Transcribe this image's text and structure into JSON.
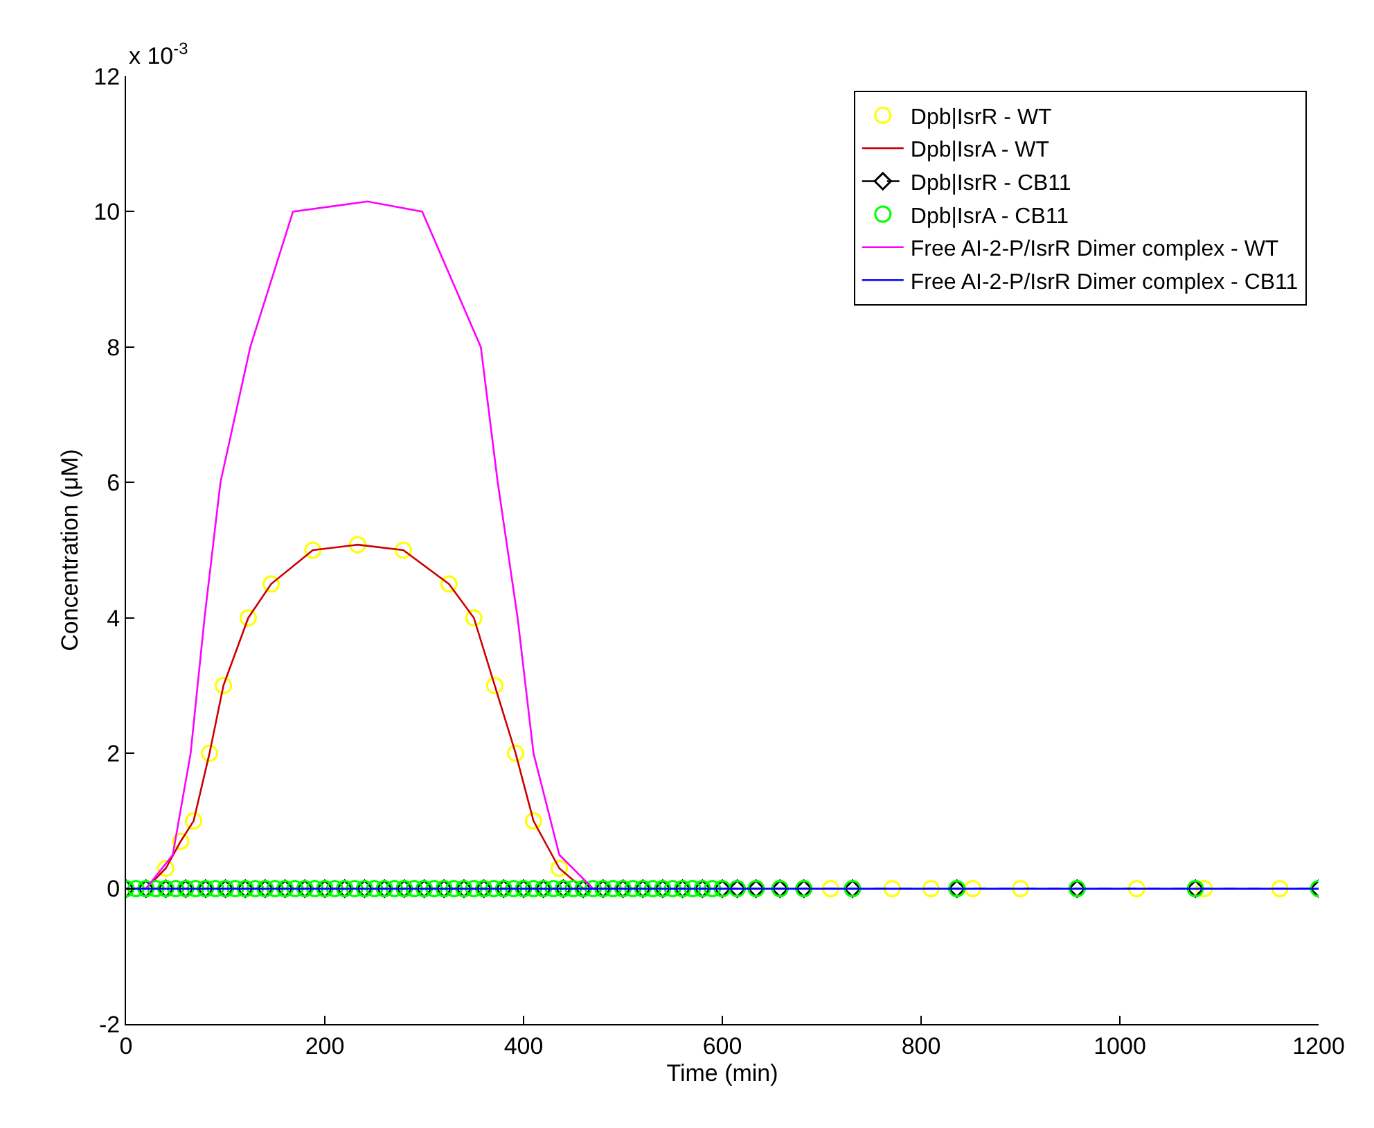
{
  "chart_data": {
    "type": "line",
    "xlabel": "Time (min)",
    "ylabel": "Concentration (μM)",
    "annotations": [
      "x 10$^{-3}$"
    ],
    "xlim": [
      0,
      1200
    ],
    "xticks": [
      0,
      200,
      400,
      600,
      800,
      1000,
      1200
    ],
    "ylim": [
      -2,
      12
    ],
    "yticks": [
      -2,
      0,
      2,
      4,
      6,
      8,
      10,
      12
    ],
    "legend": "top right",
    "series": [
      {
        "name": "Dpb|IsrR - WT",
        "type": "scatter",
        "marker": "circle",
        "color": "#ffff00",
        "x": [
          40,
          55,
          68,
          84,
          98,
          123,
          146,
          188,
          233,
          279,
          325,
          350,
          371,
          392,
          410,
          436,
          709,
          771,
          810,
          852,
          900,
          1017,
          1085,
          1161
        ],
        "values": [
          0.3,
          0.7,
          1,
          2,
          3,
          4,
          4.5,
          5,
          5.08,
          5,
          4.5,
          4,
          3,
          2,
          1,
          0.3,
          0,
          0,
          0,
          0,
          0,
          0,
          0,
          0
        ]
      },
      {
        "name": "Dpb|IsrA - WT",
        "marker": "none",
        "line_style": "solid",
        "color": "#cc0000",
        "x": [
          0,
          20,
          40,
          55,
          68,
          84,
          98,
          123,
          146,
          188,
          233,
          279,
          325,
          350,
          371,
          392,
          410,
          436,
          460,
          480,
          500
        ],
        "values": [
          0,
          0,
          0.3,
          0.7,
          1,
          2,
          3,
          4,
          4.5,
          5,
          5.08,
          5,
          4.5,
          4,
          3,
          2,
          1,
          0.3,
          0,
          0,
          0
        ]
      },
      {
        "name": "Dpb|IsrR - CB11",
        "marker": "diamond",
        "line_style": "dashed",
        "color": "#000000",
        "x": [
          0,
          20,
          40,
          60,
          80,
          100,
          120,
          140,
          160,
          180,
          200,
          220,
          240,
          260,
          280,
          300,
          320,
          340,
          360,
          380,
          400,
          420,
          440,
          460,
          480,
          500,
          520,
          540,
          560,
          580,
          600,
          615,
          634,
          658,
          682,
          731,
          836,
          957,
          1076,
          1200
        ],
        "values": [
          0,
          0,
          0,
          0,
          0,
          0,
          0,
          0,
          0,
          0,
          0,
          0,
          0,
          0,
          0,
          0,
          0,
          0,
          0,
          0,
          0,
          0,
          0,
          0,
          0,
          0,
          0,
          0,
          0,
          0,
          0,
          0,
          0,
          0,
          0,
          0,
          0,
          0,
          0,
          0
        ]
      },
      {
        "name": "Dpb|IsrA - CB11",
        "type": "scatter",
        "marker": "circle",
        "color": "#00ff00",
        "x": [
          0,
          10,
          20,
          30,
          40,
          50,
          60,
          70,
          80,
          90,
          100,
          110,
          120,
          130,
          140,
          150,
          160,
          170,
          180,
          190,
          200,
          210,
          220,
          230,
          240,
          250,
          260,
          270,
          280,
          290,
          300,
          310,
          320,
          330,
          340,
          350,
          360,
          370,
          380,
          390,
          400,
          410,
          420,
          430,
          440,
          450,
          460,
          470,
          480,
          490,
          500,
          510,
          520,
          530,
          540,
          550,
          560,
          570,
          580,
          590,
          600,
          615,
          634,
          658,
          682,
          731,
          836,
          957,
          1076,
          1200
        ],
        "values": [
          0,
          0,
          0,
          0,
          0,
          0,
          0,
          0,
          0,
          0,
          0,
          0,
          0,
          0,
          0,
          0,
          0,
          0,
          0,
          0,
          0,
          0,
          0,
          0,
          0,
          0,
          0,
          0,
          0,
          0,
          0,
          0,
          0,
          0,
          0,
          0,
          0,
          0,
          0,
          0,
          0,
          0,
          0,
          0,
          0,
          0,
          0,
          0,
          0,
          0,
          0,
          0,
          0,
          0,
          0,
          0,
          0,
          0,
          0,
          0,
          0,
          0,
          0,
          0,
          0,
          0,
          0,
          0,
          0,
          0
        ]
      },
      {
        "name": "Free AI-2-P/IsrR Dimer complex - WT",
        "marker": "none",
        "line_style": "solid",
        "color": "#ff00ff",
        "x": [
          0,
          20,
          47,
          65,
          79,
          95,
          125,
          168,
          243,
          298,
          357,
          374,
          394,
          410,
          436,
          470,
          500
        ],
        "values": [
          0,
          0,
          0.5,
          2,
          4,
          6,
          8,
          10,
          10.15,
          10,
          8,
          6,
          4,
          2,
          0.5,
          0,
          0
        ]
      },
      {
        "name": "Free AI-2-P/IsrR Dimer complex - CB11",
        "marker": "none",
        "line_style": "solid",
        "color": "#0000ff",
        "x": [
          0,
          1200
        ],
        "values": [
          0,
          0
        ]
      }
    ]
  }
}
